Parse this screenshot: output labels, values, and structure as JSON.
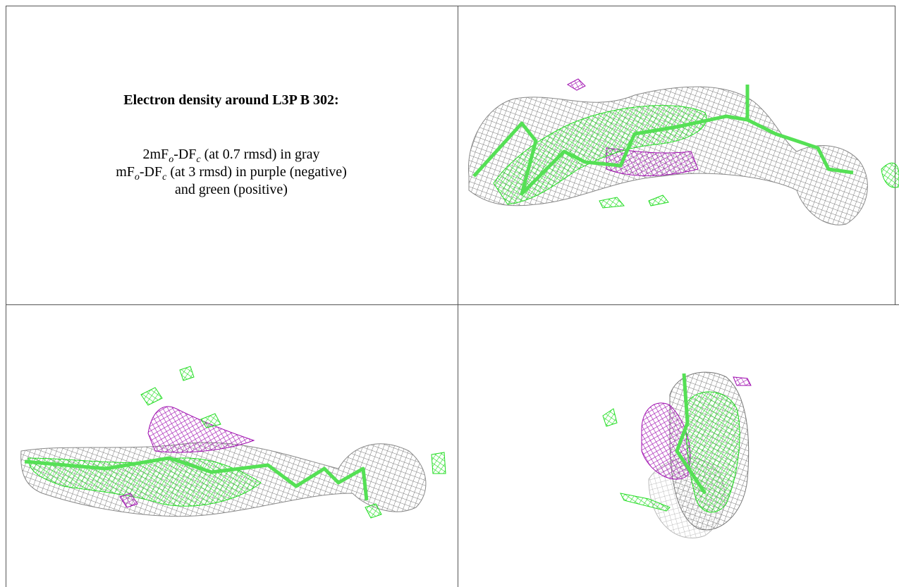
{
  "panel": {
    "title": "Electron density around L3P B 302:",
    "legend": [
      [
        "2mF",
        "o",
        "-DF",
        "c",
        " (at 0.7 rmsd) in gray"
      ],
      [
        "mF",
        "o",
        "-DF",
        "c",
        " (at 3 rmsd) in purple (negative)"
      ],
      [
        "and green (positive)"
      ]
    ]
  }
}
